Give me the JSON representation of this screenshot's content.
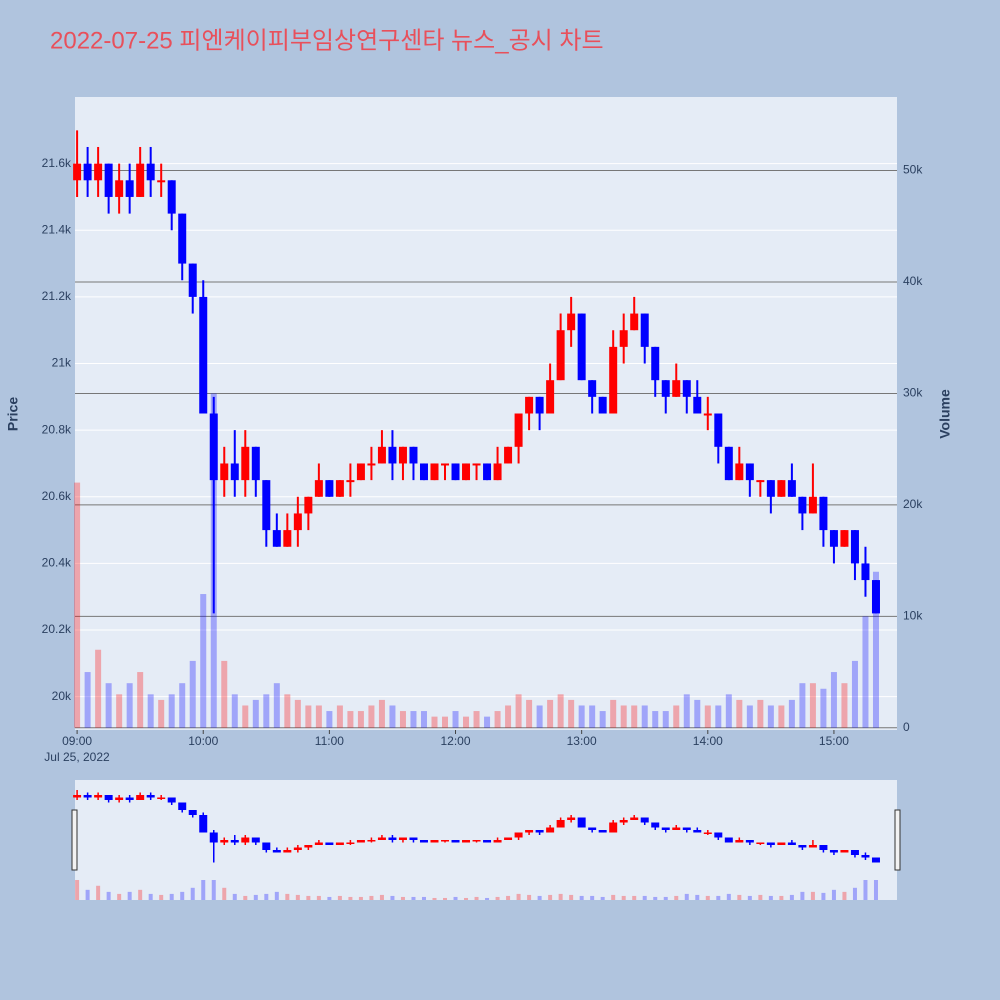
{
  "chart_data": {
    "type": "candlestick",
    "title": "2022-07-25 피엔케이피부임상연구센타 뉴스_공시 차트",
    "ylabel": "Price",
    "y2label": "Volume",
    "x_date_label": "Jul 25, 2022",
    "increasing_color": "#ff0000",
    "decreasing_color": "#0000ff",
    "x": [
      "2022-07-25 09:00",
      "2022-07-25 09:05",
      "2022-07-25 09:10",
      "2022-07-25 09:15",
      "2022-07-25 09:20",
      "2022-07-25 09:25",
      "2022-07-25 09:30",
      "2022-07-25 09:35",
      "2022-07-25 09:40",
      "2022-07-25 09:45",
      "2022-07-25 09:50",
      "2022-07-25 09:55",
      "2022-07-25 10:00",
      "2022-07-25 10:05",
      "2022-07-25 10:10",
      "2022-07-25 10:15",
      "2022-07-25 10:20",
      "2022-07-25 10:25",
      "2022-07-25 10:30",
      "2022-07-25 10:35",
      "2022-07-25 10:40",
      "2022-07-25 10:45",
      "2022-07-25 10:50",
      "2022-07-25 10:55",
      "2022-07-25 11:00",
      "2022-07-25 11:05",
      "2022-07-25 11:10",
      "2022-07-25 11:15",
      "2022-07-25 11:20",
      "2022-07-25 11:25",
      "2022-07-25 11:30",
      "2022-07-25 11:35",
      "2022-07-25 11:40",
      "2022-07-25 11:45",
      "2022-07-25 11:50",
      "2022-07-25 11:55",
      "2022-07-25 12:00",
      "2022-07-25 12:05",
      "2022-07-25 12:10",
      "2022-07-25 12:15",
      "2022-07-25 12:20",
      "2022-07-25 12:25",
      "2022-07-25 12:30",
      "2022-07-25 12:35",
      "2022-07-25 12:40",
      "2022-07-25 12:45",
      "2022-07-25 12:50",
      "2022-07-25 12:55",
      "2022-07-25 13:00",
      "2022-07-25 13:05",
      "2022-07-25 13:10",
      "2022-07-25 13:15",
      "2022-07-25 13:20",
      "2022-07-25 13:25",
      "2022-07-25 13:30",
      "2022-07-25 13:35",
      "2022-07-25 13:40",
      "2022-07-25 13:45",
      "2022-07-25 13:50",
      "2022-07-25 13:55",
      "2022-07-25 14:00",
      "2022-07-25 14:05",
      "2022-07-25 14:10",
      "2022-07-25 14:15",
      "2022-07-25 14:20",
      "2022-07-25 14:25",
      "2022-07-25 14:30",
      "2022-07-25 14:35",
      "2022-07-25 14:40",
      "2022-07-25 14:45",
      "2022-07-25 14:50",
      "2022-07-25 14:55",
      "2022-07-25 15:00",
      "2022-07-25 15:05",
      "2022-07-25 15:10",
      "2022-07-25 15:15",
      "2022-07-25 15:20"
    ],
    "open": [
      21550,
      21600,
      21550,
      21600,
      21500,
      21550,
      21500,
      21600,
      21550,
      21550,
      21450,
      21300,
      21200,
      20850,
      20650,
      20700,
      20650,
      20750,
      20650,
      20500,
      20450,
      20500,
      20550,
      20600,
      20650,
      20600,
      20650,
      20650,
      20700,
      20700,
      20750,
      20700,
      20750,
      20700,
      20650,
      20700,
      20700,
      20650,
      20700,
      20700,
      20650,
      20700,
      20750,
      20850,
      20900,
      20850,
      20950,
      21100,
      21150,
      20950,
      20900,
      20850,
      21050,
      21100,
      21150,
      21050,
      20950,
      20900,
      20950,
      20900,
      20850,
      20850,
      20750,
      20650,
      20700,
      20650,
      20650,
      20600,
      20650,
      20600,
      20550,
      20600,
      20500,
      20450,
      20500,
      20400,
      20350
    ],
    "high": [
      21700,
      21650,
      21650,
      21600,
      21600,
      21600,
      21650,
      21650,
      21600,
      21550,
      21450,
      21300,
      21250,
      20900,
      20750,
      20800,
      20800,
      20750,
      20650,
      20550,
      20550,
      20600,
      20600,
      20700,
      20650,
      20650,
      20700,
      20700,
      20750,
      20800,
      20800,
      20750,
      20750,
      20700,
      20700,
      20700,
      20700,
      20700,
      20700,
      20700,
      20750,
      20750,
      20850,
      20900,
      20900,
      21000,
      21150,
      21200,
      21150,
      20950,
      20900,
      21100,
      21150,
      21200,
      21150,
      21050,
      20950,
      21000,
      20950,
      20950,
      20900,
      20850,
      20750,
      20750,
      20700,
      20650,
      20650,
      20650,
      20700,
      20600,
      20700,
      20600,
      20500,
      20500,
      20500,
      20450,
      20350
    ],
    "low": [
      21500,
      21500,
      21500,
      21450,
      21450,
      21450,
      21500,
      21500,
      21500,
      21400,
      21250,
      21150,
      20850,
      20250,
      20600,
      20600,
      20600,
      20600,
      20450,
      20450,
      20450,
      20450,
      20500,
      20600,
      20600,
      20600,
      20600,
      20650,
      20650,
      20700,
      20650,
      20650,
      20650,
      20650,
      20650,
      20650,
      20650,
      20650,
      20650,
      20650,
      20650,
      20700,
      20700,
      20800,
      20800,
      20850,
      20950,
      21050,
      20950,
      20850,
      20850,
      20850,
      21000,
      21100,
      21000,
      20900,
      20850,
      20900,
      20850,
      20850,
      20800,
      20700,
      20650,
      20650,
      20600,
      20600,
      20550,
      20600,
      20600,
      20500,
      20550,
      20450,
      20400,
      20450,
      20350,
      20300,
      20250
    ],
    "close": [
      21600,
      21550,
      21600,
      21500,
      21550,
      21500,
      21600,
      21550,
      21550,
      21450,
      21300,
      21200,
      20850,
      20650,
      20700,
      20650,
      20750,
      20650,
      20500,
      20450,
      20500,
      20550,
      20600,
      20650,
      20600,
      20650,
      20650,
      20700,
      20700,
      20750,
      20700,
      20750,
      20700,
      20650,
      20700,
      20700,
      20650,
      20700,
      20700,
      20650,
      20700,
      20750,
      20850,
      20900,
      20850,
      20950,
      21100,
      21150,
      20950,
      20900,
      20850,
      21050,
      21100,
      21150,
      21050,
      20950,
      20900,
      20950,
      20900,
      20850,
      20850,
      20750,
      20650,
      20700,
      20650,
      20650,
      20600,
      20650,
      20600,
      20550,
      20600,
      20500,
      20450,
      20500,
      20400,
      20350,
      20250
    ],
    "volume": [
      22000,
      5000,
      7000,
      4000,
      3000,
      4000,
      5000,
      3000,
      2500,
      3000,
      4000,
      6000,
      12000,
      30000,
      6000,
      3000,
      2000,
      2500,
      3000,
      4000,
      3000,
      2500,
      2000,
      2000,
      1500,
      2000,
      1500,
      1500,
      2000,
      2500,
      2000,
      1500,
      1500,
      1500,
      1000,
      1000,
      1500,
      1000,
      1500,
      1000,
      1500,
      2000,
      3000,
      2500,
      2000,
      2500,
      3000,
      2500,
      2000,
      2000,
      1500,
      2500,
      2000,
      2000,
      2000,
      1500,
      1500,
      2000,
      3000,
      2500,
      2000,
      2000,
      3000,
      2500,
      2000,
      2500,
      2000,
      2000,
      2500,
      4000,
      4000,
      3500,
      5000,
      4000,
      6000,
      10000,
      14000
    ],
    "xlim": [
      "2022-07-25 08:59",
      "2022-07-25 15:30"
    ],
    "xticks": [
      {
        "value": "2022-07-25 09:00",
        "label": "09:00"
      },
      {
        "value": "2022-07-25 10:00",
        "label": "10:00"
      },
      {
        "value": "2022-07-25 11:00",
        "label": "11:00"
      },
      {
        "value": "2022-07-25 12:00",
        "label": "12:00"
      },
      {
        "value": "2022-07-25 13:00",
        "label": "13:00"
      },
      {
        "value": "2022-07-25 14:00",
        "label": "14:00"
      },
      {
        "value": "2022-07-25 15:00",
        "label": "15:00"
      }
    ],
    "ylim": [
      19900,
      21800
    ],
    "yticks": [
      {
        "value": 20000,
        "label": "20k"
      },
      {
        "value": 20200,
        "label": "20.2k"
      },
      {
        "value": 20400,
        "label": "20.4k"
      },
      {
        "value": 20600,
        "label": "20.6k"
      },
      {
        "value": 20800,
        "label": "20.8k"
      },
      {
        "value": 21000,
        "label": "21k"
      },
      {
        "value": 21200,
        "label": "21.2k"
      },
      {
        "value": 21400,
        "label": "21.4k"
      },
      {
        "value": 21600,
        "label": "21.6k"
      }
    ],
    "y2lim": [
      -200,
      56600
    ],
    "y2ticks": [
      0,
      {
        "value": 10000,
        "label": "10k"
      },
      {
        "value": 20000,
        "label": "20k"
      },
      {
        "value": 30000,
        "label": "30k"
      },
      {
        "value": 40000,
        "label": "40k"
      },
      {
        "value": 50000,
        "label": "50k"
      }
    ],
    "grid": true
  }
}
